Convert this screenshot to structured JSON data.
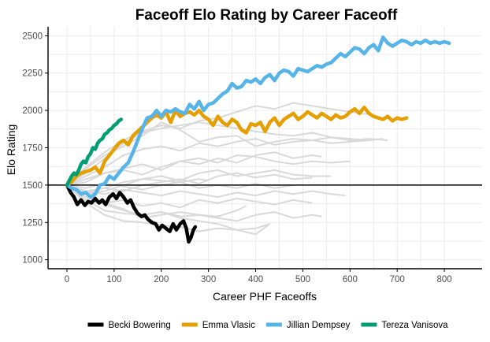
{
  "chart_data": {
    "type": "line",
    "title": "Faceoff Elo Rating by Career Faceoff",
    "xlabel": "Career PHF Faceoffs",
    "ylabel": "Elo Rating",
    "xlim": [
      -40,
      880
    ],
    "ylim": [
      940,
      2560
    ],
    "xticks": [
      0,
      100,
      200,
      300,
      400,
      500,
      600,
      700,
      800
    ],
    "yticks": [
      1000,
      1250,
      1500,
      1750,
      2000,
      2250,
      2500
    ],
    "hline": 1500,
    "grid": true,
    "legend_position": "bottom",
    "series": [
      {
        "name": "Becki Bowering",
        "color": "#000000",
        "x": [
          0,
          8,
          15,
          22,
          30,
          38,
          45,
          52,
          60,
          68,
          75,
          82,
          90,
          98,
          105,
          112,
          120,
          128,
          135,
          142,
          150,
          158,
          165,
          172,
          180,
          188,
          195,
          202,
          210,
          218,
          225,
          232,
          240,
          247,
          253,
          258,
          263,
          268,
          272
        ],
        "y": [
          1500,
          1450,
          1420,
          1370,
          1400,
          1365,
          1390,
          1380,
          1410,
          1380,
          1400,
          1370,
          1420,
          1440,
          1410,
          1450,
          1420,
          1380,
          1400,
          1350,
          1310,
          1290,
          1300,
          1270,
          1250,
          1240,
          1200,
          1230,
          1210,
          1190,
          1240,
          1200,
          1240,
          1260,
          1210,
          1120,
          1150,
          1200,
          1220
        ]
      },
      {
        "name": "Emma Vlasic",
        "color": "#E69F00",
        "x": [
          0,
          10,
          20,
          30,
          40,
          50,
          60,
          70,
          80,
          90,
          100,
          110,
          120,
          130,
          140,
          150,
          160,
          170,
          180,
          190,
          200,
          210,
          220,
          230,
          240,
          250,
          260,
          270,
          280,
          290,
          300,
          310,
          320,
          330,
          340,
          350,
          360,
          370,
          380,
          390,
          400,
          410,
          420,
          430,
          440,
          450,
          460,
          470,
          480,
          490,
          500,
          510,
          520,
          530,
          540,
          550,
          560,
          570,
          580,
          590,
          600,
          610,
          620,
          630,
          640,
          650,
          660,
          670,
          680,
          690,
          700,
          710,
          720
        ],
        "y": [
          1500,
          1520,
          1560,
          1580,
          1590,
          1600,
          1620,
          1580,
          1660,
          1700,
          1740,
          1780,
          1800,
          1770,
          1830,
          1860,
          1890,
          1920,
          1950,
          1970,
          1950,
          1990,
          1920,
          2000,
          1960,
          1980,
          1990,
          1970,
          2000,
          1960,
          1940,
          1900,
          1960,
          1920,
          1900,
          1940,
          1920,
          1870,
          1850,
          1910,
          1900,
          1920,
          1860,
          1920,
          1950,
          1900,
          1940,
          1960,
          1980,
          1940,
          1960,
          1990,
          1970,
          1950,
          1980,
          1960,
          1940,
          1970,
          1950,
          1960,
          1990,
          2010,
          1980,
          2020,
          1980,
          1960,
          1950,
          1940,
          1960,
          1930,
          1950,
          1940,
          1950
        ]
      },
      {
        "name": "Jillian Dempsey",
        "color": "#56B4E9",
        "x": [
          0,
          10,
          20,
          30,
          40,
          50,
          60,
          70,
          80,
          90,
          100,
          110,
          120,
          130,
          140,
          150,
          160,
          170,
          180,
          190,
          200,
          210,
          220,
          230,
          240,
          250,
          260,
          270,
          280,
          290,
          300,
          310,
          320,
          330,
          340,
          350,
          360,
          370,
          380,
          390,
          400,
          410,
          420,
          430,
          440,
          450,
          460,
          470,
          480,
          490,
          500,
          510,
          520,
          530,
          540,
          550,
          560,
          570,
          580,
          590,
          600,
          610,
          620,
          630,
          640,
          650,
          660,
          670,
          680,
          690,
          700,
          710,
          720,
          730,
          740,
          750,
          760,
          770,
          780,
          790,
          800,
          810
        ],
        "y": [
          1500,
          1480,
          1470,
          1440,
          1450,
          1420,
          1440,
          1500,
          1510,
          1560,
          1540,
          1580,
          1620,
          1650,
          1720,
          1800,
          1880,
          1950,
          1960,
          2000,
          1960,
          2000,
          1990,
          2010,
          1990,
          1980,
          2040,
          2010,
          2060,
          2000,
          2040,
          2050,
          2080,
          2110,
          2130,
          2180,
          2150,
          2160,
          2200,
          2190,
          2210,
          2180,
          2220,
          2240,
          2200,
          2250,
          2270,
          2260,
          2230,
          2280,
          2270,
          2260,
          2280,
          2300,
          2290,
          2310,
          2320,
          2350,
          2380,
          2360,
          2390,
          2420,
          2410,
          2380,
          2420,
          2440,
          2400,
          2490,
          2450,
          2430,
          2450,
          2470,
          2460,
          2440,
          2460,
          2450,
          2470,
          2450,
          2460,
          2450,
          2460,
          2450
        ]
      },
      {
        "name": "Tereza Vanisova",
        "color": "#009E73",
        "x": [
          0,
          5,
          10,
          15,
          20,
          25,
          30,
          35,
          40,
          45,
          50,
          55,
          60,
          65,
          70,
          75,
          80,
          85,
          90,
          95,
          100,
          105,
          110,
          115
        ],
        "y": [
          1500,
          1530,
          1560,
          1580,
          1570,
          1600,
          1640,
          1660,
          1650,
          1690,
          1710,
          1750,
          1740,
          1780,
          1800,
          1810,
          1840,
          1850,
          1870,
          1880,
          1900,
          1910,
          1930,
          1940
        ]
      }
    ],
    "background_series_color": "#d9d9d9",
    "background_series": [
      {
        "x": [
          0,
          40,
          80,
          120,
          160,
          200,
          240,
          280,
          320,
          360,
          400,
          440,
          480,
          520,
          560,
          600,
          640
        ],
        "y": [
          1500,
          1560,
          1620,
          1700,
          1740,
          1760,
          1730,
          1780,
          1760,
          1790,
          1810,
          1770,
          1790,
          1800,
          1780,
          1790,
          1800
        ]
      },
      {
        "x": [
          0,
          40,
          80,
          120,
          160,
          200,
          240,
          280,
          320,
          360,
          400,
          440,
          480,
          520,
          560,
          600,
          650
        ],
        "y": [
          1500,
          1620,
          1720,
          1800,
          1860,
          1900,
          1880,
          1930,
          1950,
          1990,
          2030,
          2010,
          2050,
          2030,
          2010,
          1990,
          1970
        ]
      },
      {
        "x": [
          0,
          40,
          80,
          120,
          160,
          200,
          240,
          280,
          320,
          360,
          400,
          440,
          480,
          520,
          560,
          600,
          640,
          680
        ],
        "y": [
          1500,
          1580,
          1680,
          1780,
          1850,
          1880,
          1900,
          1920,
          1900,
          1880,
          1860,
          1840,
          1830,
          1850,
          1820,
          1800,
          1810,
          1800
        ]
      },
      {
        "x": [
          0,
          40,
          80,
          120,
          160,
          200,
          240,
          280,
          320,
          360,
          400,
          440,
          480,
          520,
          560,
          600,
          640,
          670
        ],
        "y": [
          1500,
          1610,
          1700,
          1760,
          1830,
          1920,
          1870,
          1790,
          1820,
          1830,
          1760,
          1790,
          1810,
          1800,
          1820,
          1810,
          1800,
          1810
        ]
      },
      {
        "x": [
          0,
          40,
          80,
          120,
          160,
          200,
          240,
          280,
          320,
          360,
          400,
          440,
          480,
          520,
          540
        ],
        "y": [
          1500,
          1520,
          1580,
          1600,
          1570,
          1620,
          1660,
          1640,
          1680,
          1650,
          1700,
          1720,
          1680,
          1700,
          1690
        ]
      },
      {
        "x": [
          0,
          40,
          80,
          120,
          160,
          200,
          240,
          280,
          320,
          360,
          400,
          440,
          480,
          520,
          560,
          600
        ],
        "y": [
          1500,
          1540,
          1580,
          1610,
          1640,
          1600,
          1660,
          1680,
          1650,
          1700,
          1690,
          1660,
          1640,
          1660,
          1650,
          1660
        ]
      },
      {
        "x": [
          0,
          40,
          80,
          120,
          160,
          200,
          240,
          280,
          320,
          360,
          400,
          440,
          480,
          520,
          560
        ],
        "y": [
          1500,
          1460,
          1480,
          1520,
          1540,
          1560,
          1530,
          1580,
          1600,
          1560,
          1580,
          1600,
          1570,
          1560,
          1560
        ]
      },
      {
        "x": [
          0,
          40,
          80,
          120,
          160,
          200,
          240,
          280,
          320,
          360,
          400,
          440,
          480,
          520
        ],
        "y": [
          1500,
          1450,
          1480,
          1460,
          1500,
          1520,
          1540,
          1510,
          1560,
          1580,
          1550,
          1570,
          1540,
          1550
        ]
      },
      {
        "x": [
          0,
          40,
          80,
          120,
          160,
          200,
          240,
          280,
          320,
          360,
          400,
          440,
          480
        ],
        "y": [
          1500,
          1480,
          1510,
          1490,
          1470,
          1500,
          1520,
          1480,
          1500,
          1480,
          1510,
          1480,
          1500
        ]
      },
      {
        "x": [
          0,
          40,
          80,
          120,
          160,
          200,
          240,
          280,
          320,
          360,
          400,
          440,
          480,
          520,
          560,
          590
        ],
        "y": [
          1500,
          1460,
          1440,
          1470,
          1450,
          1430,
          1460,
          1440,
          1420,
          1450,
          1430,
          1460,
          1440,
          1460,
          1440,
          1430
        ]
      },
      {
        "x": [
          0,
          40,
          80,
          120,
          160,
          200,
          240,
          280,
          320,
          360,
          400,
          440,
          480,
          520
        ],
        "y": [
          1500,
          1420,
          1380,
          1400,
          1360,
          1380,
          1350,
          1400,
          1380,
          1410,
          1390,
          1370,
          1400,
          1380
        ]
      },
      {
        "x": [
          0,
          40,
          80,
          120,
          160,
          200,
          240,
          280,
          320,
          360,
          400,
          430
        ],
        "y": [
          1500,
          1400,
          1370,
          1330,
          1300,
          1320,
          1280,
          1260,
          1240,
          1200,
          1210,
          1240
        ]
      },
      {
        "x": [
          0,
          40,
          80,
          120,
          160,
          200,
          240,
          280,
          320,
          360,
          400,
          440,
          480,
          520,
          540
        ],
        "y": [
          1500,
          1420,
          1380,
          1340,
          1280,
          1300,
          1320,
          1300,
          1280,
          1260,
          1300,
          1320,
          1280,
          1300,
          1290
        ]
      },
      {
        "x": [
          0,
          40,
          80,
          120,
          160,
          200,
          240,
          280,
          320,
          360,
          380
        ],
        "y": [
          1500,
          1400,
          1330,
          1310,
          1300,
          1320,
          1290,
          1300,
          1290,
          1330,
          1360
        ]
      },
      {
        "x": [
          0,
          40,
          80,
          120,
          160,
          200,
          240,
          280,
          300
        ],
        "y": [
          1500,
          1440,
          1460,
          1500,
          1540,
          1530,
          1520,
          1540,
          1530
        ]
      },
      {
        "x": [
          0,
          40,
          80,
          120,
          160,
          200,
          240,
          280,
          320,
          360,
          400,
          430
        ],
        "y": [
          1500,
          1380,
          1300,
          1260,
          1250,
          1230,
          1220,
          1190,
          1210,
          1200,
          1170,
          1240
        ]
      }
    ]
  }
}
